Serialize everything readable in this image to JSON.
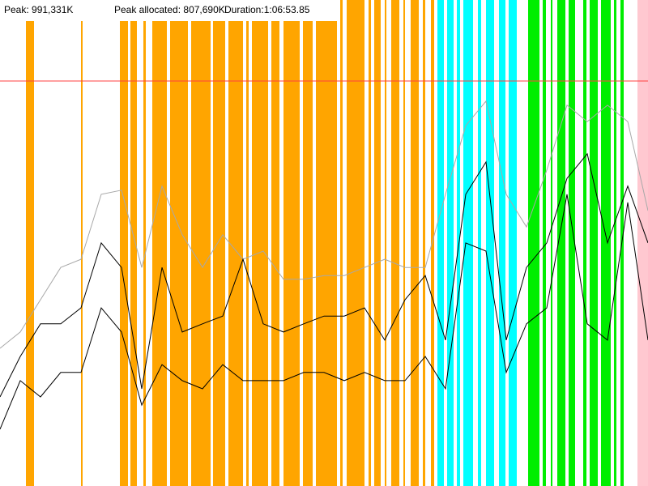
{
  "chart_data": {
    "type": "line",
    "peak": {
      "value": 991331,
      "label": "Peak: 991,331K",
      "color": "#ff4040"
    },
    "peak_allocated": "Peak allocated: 807,690K",
    "duration": "Duration:1:06:53.85",
    "series": [
      {
        "color": "#a8a8a8",
        "values": [
          337000,
          377000,
          456000,
          535000,
          555000,
          714000,
          724000,
          535000,
          734000,
          615000,
          535000,
          615000,
          555000,
          575000,
          506000,
          506000,
          515000,
          515000,
          535000,
          555000,
          535000,
          535000,
          714000,
          882000,
          942000,
          714000,
          634000,
          773000,
          932000,
          892000,
          932000,
          892000,
          674000
        ]
      },
      {
        "color": "#000000",
        "values": [
          218000,
          317000,
          397000,
          397000,
          436000,
          595000,
          535000,
          238000,
          535000,
          377000,
          397000,
          416000,
          555000,
          397000,
          377000,
          397000,
          416000,
          416000,
          436000,
          357000,
          456000,
          515000,
          357000,
          714000,
          793000,
          357000,
          535000,
          595000,
          753000,
          813000,
          595000,
          734000,
          595000
        ]
      },
      {
        "color": "#000000",
        "values": [
          139000,
          258000,
          218000,
          278000,
          278000,
          436000,
          377000,
          198000,
          297000,
          258000,
          238000,
          297000,
          258000,
          258000,
          258000,
          278000,
          278000,
          258000,
          278000,
          258000,
          258000,
          317000,
          238000,
          595000,
          575000,
          278000,
          397000,
          436000,
          714000,
          397000,
          357000,
          694000,
          357000
        ]
      }
    ]
  }
}
